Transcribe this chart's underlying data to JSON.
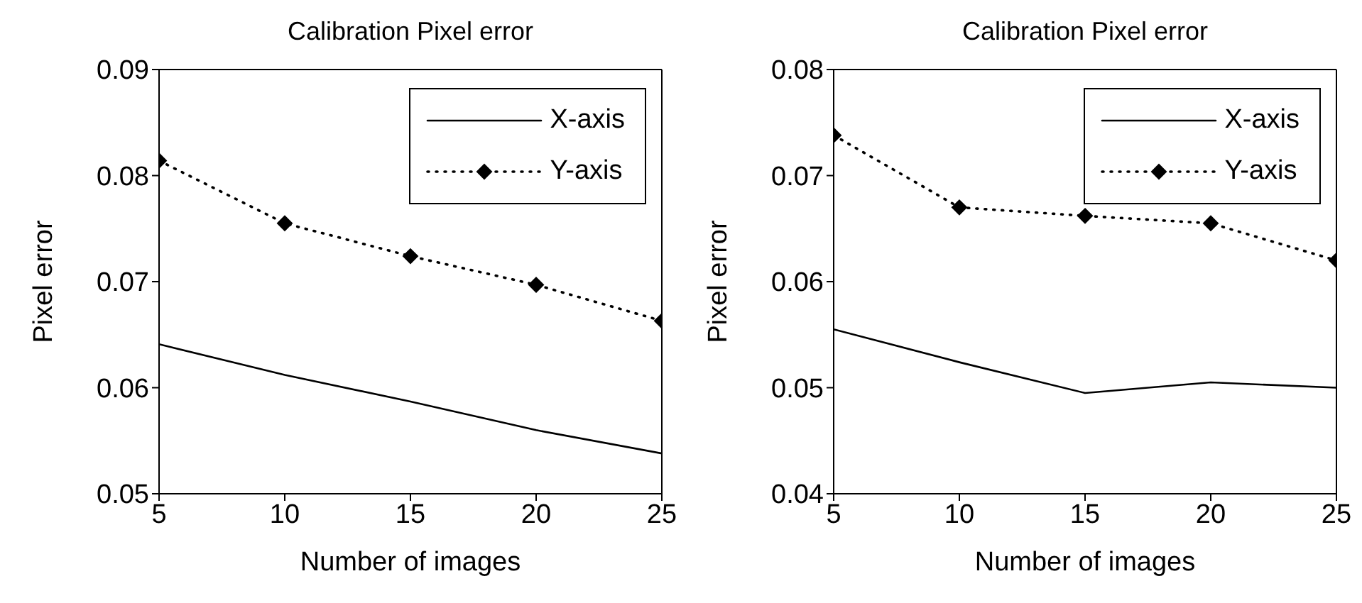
{
  "chart_data": [
    {
      "type": "line",
      "title": "Calibration Pixel error",
      "xlabel": "Number of images",
      "ylabel": "Pixel error",
      "x": [
        5,
        10,
        15,
        20,
        25
      ],
      "series": [
        {
          "name": "X-axis",
          "color": "#000000",
          "values": [
            0.0641,
            0.0612,
            0.0587,
            0.056,
            0.0538
          ],
          "marker": "none",
          "line_style": "solid"
        },
        {
          "name": "Y-axis",
          "color": "#000000",
          "values": [
            0.0814,
            0.0755,
            0.0724,
            0.0697,
            0.0663
          ],
          "marker": "diamond",
          "line_style": "dotted"
        }
      ],
      "xlim": [
        5,
        25
      ],
      "xticks": [
        5,
        10,
        15,
        20,
        25
      ],
      "ylim": [
        0.05,
        0.09
      ],
      "yticks": [
        0.05,
        0.06,
        0.07,
        0.08,
        0.09
      ],
      "grid": false,
      "legend": "top right"
    },
    {
      "type": "line",
      "title": "Calibration Pixel error",
      "xlabel": "Number of images",
      "ylabel": "Pixel error",
      "x": [
        5,
        10,
        15,
        20,
        25
      ],
      "series": [
        {
          "name": "X-axis",
          "color": "#000000",
          "values": [
            0.0555,
            0.0524,
            0.0495,
            0.0505,
            0.05
          ],
          "marker": "none",
          "line_style": "solid"
        },
        {
          "name": "Y-axis",
          "color": "#000000",
          "values": [
            0.0738,
            0.067,
            0.0662,
            0.0655,
            0.062
          ],
          "marker": "diamond",
          "line_style": "dotted"
        }
      ],
      "xlim": [
        5,
        25
      ],
      "xticks": [
        5,
        10,
        15,
        20,
        25
      ],
      "ylim": [
        0.04,
        0.08
      ],
      "yticks": [
        0.04,
        0.05,
        0.06,
        0.07,
        0.08
      ],
      "grid": false,
      "legend": "top right"
    }
  ]
}
